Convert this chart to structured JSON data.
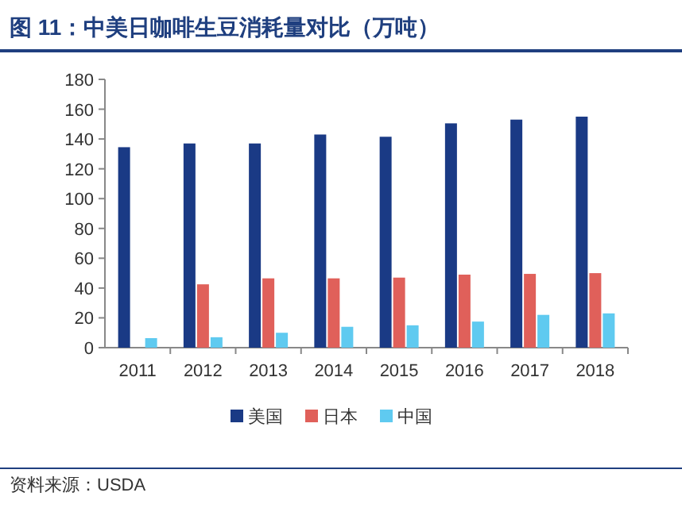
{
  "chart_data": {
    "type": "bar",
    "title": "图 11：中美日咖啡生豆消耗量对比（万吨）",
    "categories": [
      "2011",
      "2012",
      "2013",
      "2014",
      "2015",
      "2016",
      "2017",
      "2018"
    ],
    "series": [
      {
        "name": "美国",
        "color": "#1a3a85",
        "values": [
          134.5,
          137,
          137,
          143,
          141.5,
          150.5,
          153,
          155
        ]
      },
      {
        "name": "日本",
        "color": "#e0605a",
        "values": [
          null,
          42.5,
          46.5,
          46.5,
          47,
          49,
          49.5,
          50
        ]
      },
      {
        "name": "中国",
        "color": "#5fcaf0",
        "values": [
          6.4,
          7,
          10,
          14,
          15,
          17.5,
          22,
          23
        ]
      }
    ],
    "ylim": [
      0,
      180
    ],
    "yticks": [
      0,
      20,
      40,
      60,
      80,
      100,
      120,
      140,
      160,
      180
    ],
    "grid": false,
    "legend": "bottom",
    "annotations": [
      "资料来源：USDA"
    ]
  }
}
